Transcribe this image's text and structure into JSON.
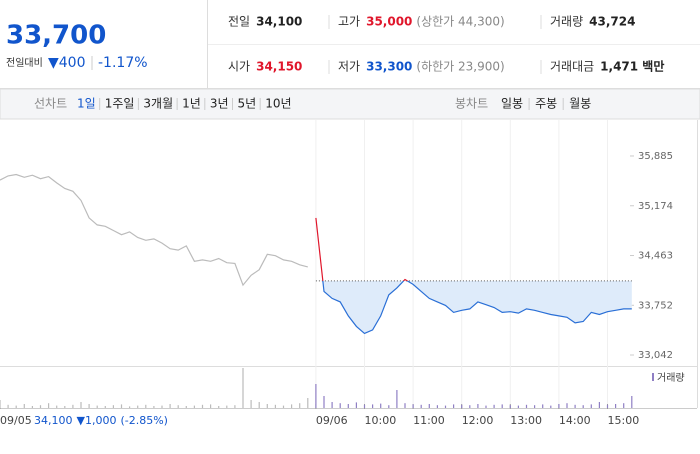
{
  "header": {
    "price": "33,700",
    "change_label": "전일대비",
    "change": "▼400",
    "change_rate": "-1.17%",
    "stats": [
      {
        "label": "전일",
        "value": "34,100",
        "color": "#222"
      },
      {
        "label": "고가",
        "value": "35,000",
        "extra": "(상한가 44,300)",
        "color": "#e0162b"
      },
      {
        "label": "거래량",
        "value": "43,724",
        "color": "#222"
      },
      {
        "label": "시가",
        "value": "34,150",
        "color": "#e0162b"
      },
      {
        "label": "저가",
        "value": "33,300",
        "extra": "(하한가 23,900)",
        "color": "#1155cc"
      },
      {
        "label": "거래대금",
        "value": "1,471 백만",
        "color": "#222"
      }
    ]
  },
  "tabs": {
    "line_label": "선차트",
    "line": [
      "1일",
      "1주일",
      "3개월",
      "1년",
      "3년",
      "5년",
      "10년"
    ],
    "selected": "1일",
    "candle_label": "봉차트",
    "candle": [
      "일봉",
      "주봉",
      "월봉"
    ]
  },
  "chart_data": {
    "type": "line",
    "categories": [
      "09/05",
      null,
      null,
      null,
      null,
      null,
      null,
      null,
      null,
      null,
      null,
      null,
      null,
      null,
      null,
      null,
      null,
      null,
      null,
      null,
      null,
      null,
      null,
      null,
      null,
      null,
      null,
      null,
      null,
      null,
      null,
      null,
      null,
      null,
      null,
      null,
      null,
      null,
      null,
      "09/06",
      null,
      null,
      null,
      null,
      null,
      "10:00",
      null,
      null,
      null,
      null,
      null,
      "11:00",
      null,
      null,
      null,
      null,
      null,
      "12:00",
      null,
      null,
      null,
      null,
      null,
      "13:00",
      null,
      null,
      null,
      null,
      null,
      "14:00",
      null,
      null,
      null,
      null,
      null,
      "15:00",
      null,
      null,
      null
    ],
    "series": [
      {
        "color": "#bbbbbb",
        "values": [
          35540,
          35600,
          35620,
          35580,
          35610,
          35560,
          35590,
          35500,
          35420,
          35380,
          35250,
          35000,
          34900,
          34880,
          34820,
          34760,
          34800,
          34720,
          34680,
          34700,
          34640,
          34560,
          34540,
          34600,
          34380,
          34400,
          34380,
          34420,
          34360,
          34350,
          34040,
          34180,
          34260,
          34480,
          34460,
          34400,
          34380,
          34330,
          34300,
          null,
          null,
          null,
          null,
          null,
          null,
          null,
          null,
          null,
          null,
          null,
          null,
          null,
          null,
          null,
          null,
          null,
          null,
          null,
          null,
          null,
          null,
          null,
          null,
          null,
          null,
          null,
          null,
          null,
          null,
          null,
          null,
          null,
          null,
          null,
          null,
          null,
          null,
          null,
          null
        ]
      },
      {
        "color": "#2a6fd6",
        "up_color": "#e0162b",
        "fill": "#deebfa",
        "values": [
          null,
          null,
          null,
          null,
          null,
          null,
          null,
          null,
          null,
          null,
          null,
          null,
          null,
          null,
          null,
          null,
          null,
          null,
          null,
          null,
          null,
          null,
          null,
          null,
          null,
          null,
          null,
          null,
          null,
          null,
          null,
          null,
          null,
          null,
          null,
          null,
          null,
          null,
          null,
          35000,
          33950,
          33850,
          33800,
          33600,
          33450,
          33350,
          33400,
          33600,
          33900,
          34000,
          34120,
          34050,
          33950,
          33850,
          33800,
          33750,
          33650,
          33680,
          33700,
          33800,
          33760,
          33720,
          33650,
          33660,
          33640,
          33700,
          33680,
          33650,
          33620,
          33600,
          33580,
          33500,
          33520,
          33650,
          33620,
          33660,
          33680,
          33700,
          33700
        ]
      }
    ],
    "baseline": 34100,
    "ylim": [
      32899,
      36399
    ],
    "yticks": [
      {
        "value": 35885,
        "label": "35,885"
      },
      {
        "value": 35174,
        "label": "35,174"
      },
      {
        "value": 34463,
        "label": "34,463"
      },
      {
        "value": 33752,
        "label": "33,752"
      },
      {
        "value": 33042,
        "label": "33,042"
      }
    ],
    "grid": false,
    "volume": {
      "name": "거래량",
      "color": "#8f7fc4",
      "vlim": [
        0,
        100
      ],
      "values": [
        20,
        8,
        6,
        10,
        5,
        7,
        12,
        6,
        5,
        8,
        15,
        10,
        6,
        5,
        7,
        9,
        4,
        6,
        8,
        5,
        6,
        10,
        7,
        5,
        6,
        8,
        9,
        5,
        6,
        7,
        100,
        20,
        15,
        10,
        8,
        6,
        9,
        12,
        25,
        60,
        30,
        15,
        12,
        10,
        14,
        8,
        9,
        11,
        7,
        45,
        12,
        9,
        8,
        10,
        7,
        6,
        9,
        8,
        7,
        10,
        6,
        8,
        9,
        7,
        6,
        8,
        7,
        9,
        6,
        10,
        12,
        8,
        7,
        9,
        15,
        8,
        10,
        12,
        30
      ]
    },
    "footer": {
      "price": "34,100",
      "change": "▼1,000",
      "rate": "(-2.85%)"
    }
  }
}
